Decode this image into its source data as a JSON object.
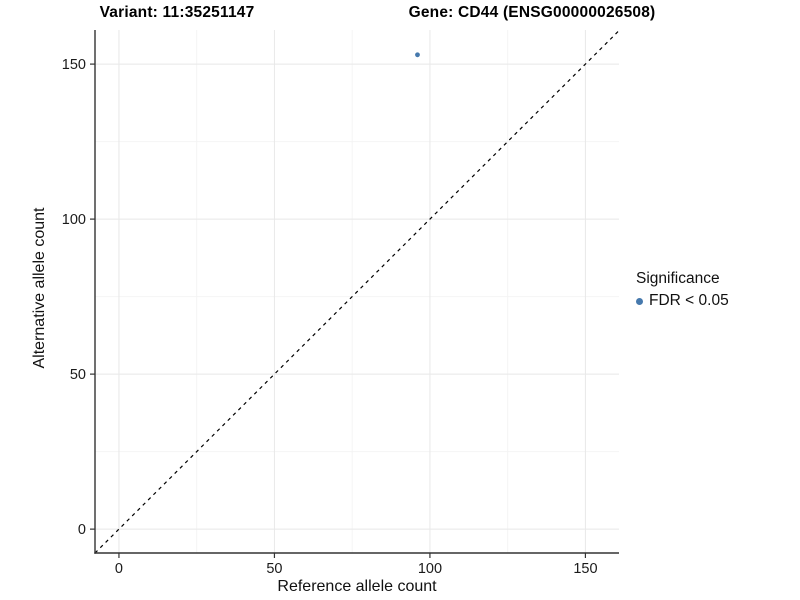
{
  "titles": {
    "variant": "Variant: 11:35251147",
    "gene": "Gene: CD44 (ENSG00000026508)"
  },
  "legend": {
    "title": "Significance",
    "items": [
      {
        "label": "FDR < 0.05",
        "color": "#4679ad"
      }
    ]
  },
  "chart_data": {
    "type": "scatter",
    "title_left": "Variant: 11:35251147",
    "title_right": "Gene: CD44 (ENSG00000026508)",
    "xlabel": "Reference allele count",
    "ylabel": "Alternative allele count",
    "xlim": [
      -7.7,
      160.8
    ],
    "ylim": [
      -7.7,
      161.0
    ],
    "x_ticks": [
      0,
      50,
      100,
      150
    ],
    "y_ticks": [
      0,
      50,
      100,
      150
    ],
    "x_minor_ticks": [
      25,
      75,
      125
    ],
    "y_minor_ticks": [
      25,
      75,
      125
    ],
    "grid": true,
    "legend_position": "right",
    "series": [
      {
        "name": "FDR < 0.05",
        "color": "#4679ad",
        "points": [
          {
            "x": 96,
            "y": 153
          }
        ]
      }
    ],
    "reference_line": {
      "kind": "identity",
      "equation": "y = x",
      "style": "dashed",
      "color": "#000000"
    },
    "colors": {
      "point": "#4679ad",
      "axis_line": "#333333",
      "tick_label": "#1a1a1a",
      "grid_major": "#e8e8e8",
      "grid_minor": "#f4f4f4",
      "background": "#ffffff"
    }
  }
}
